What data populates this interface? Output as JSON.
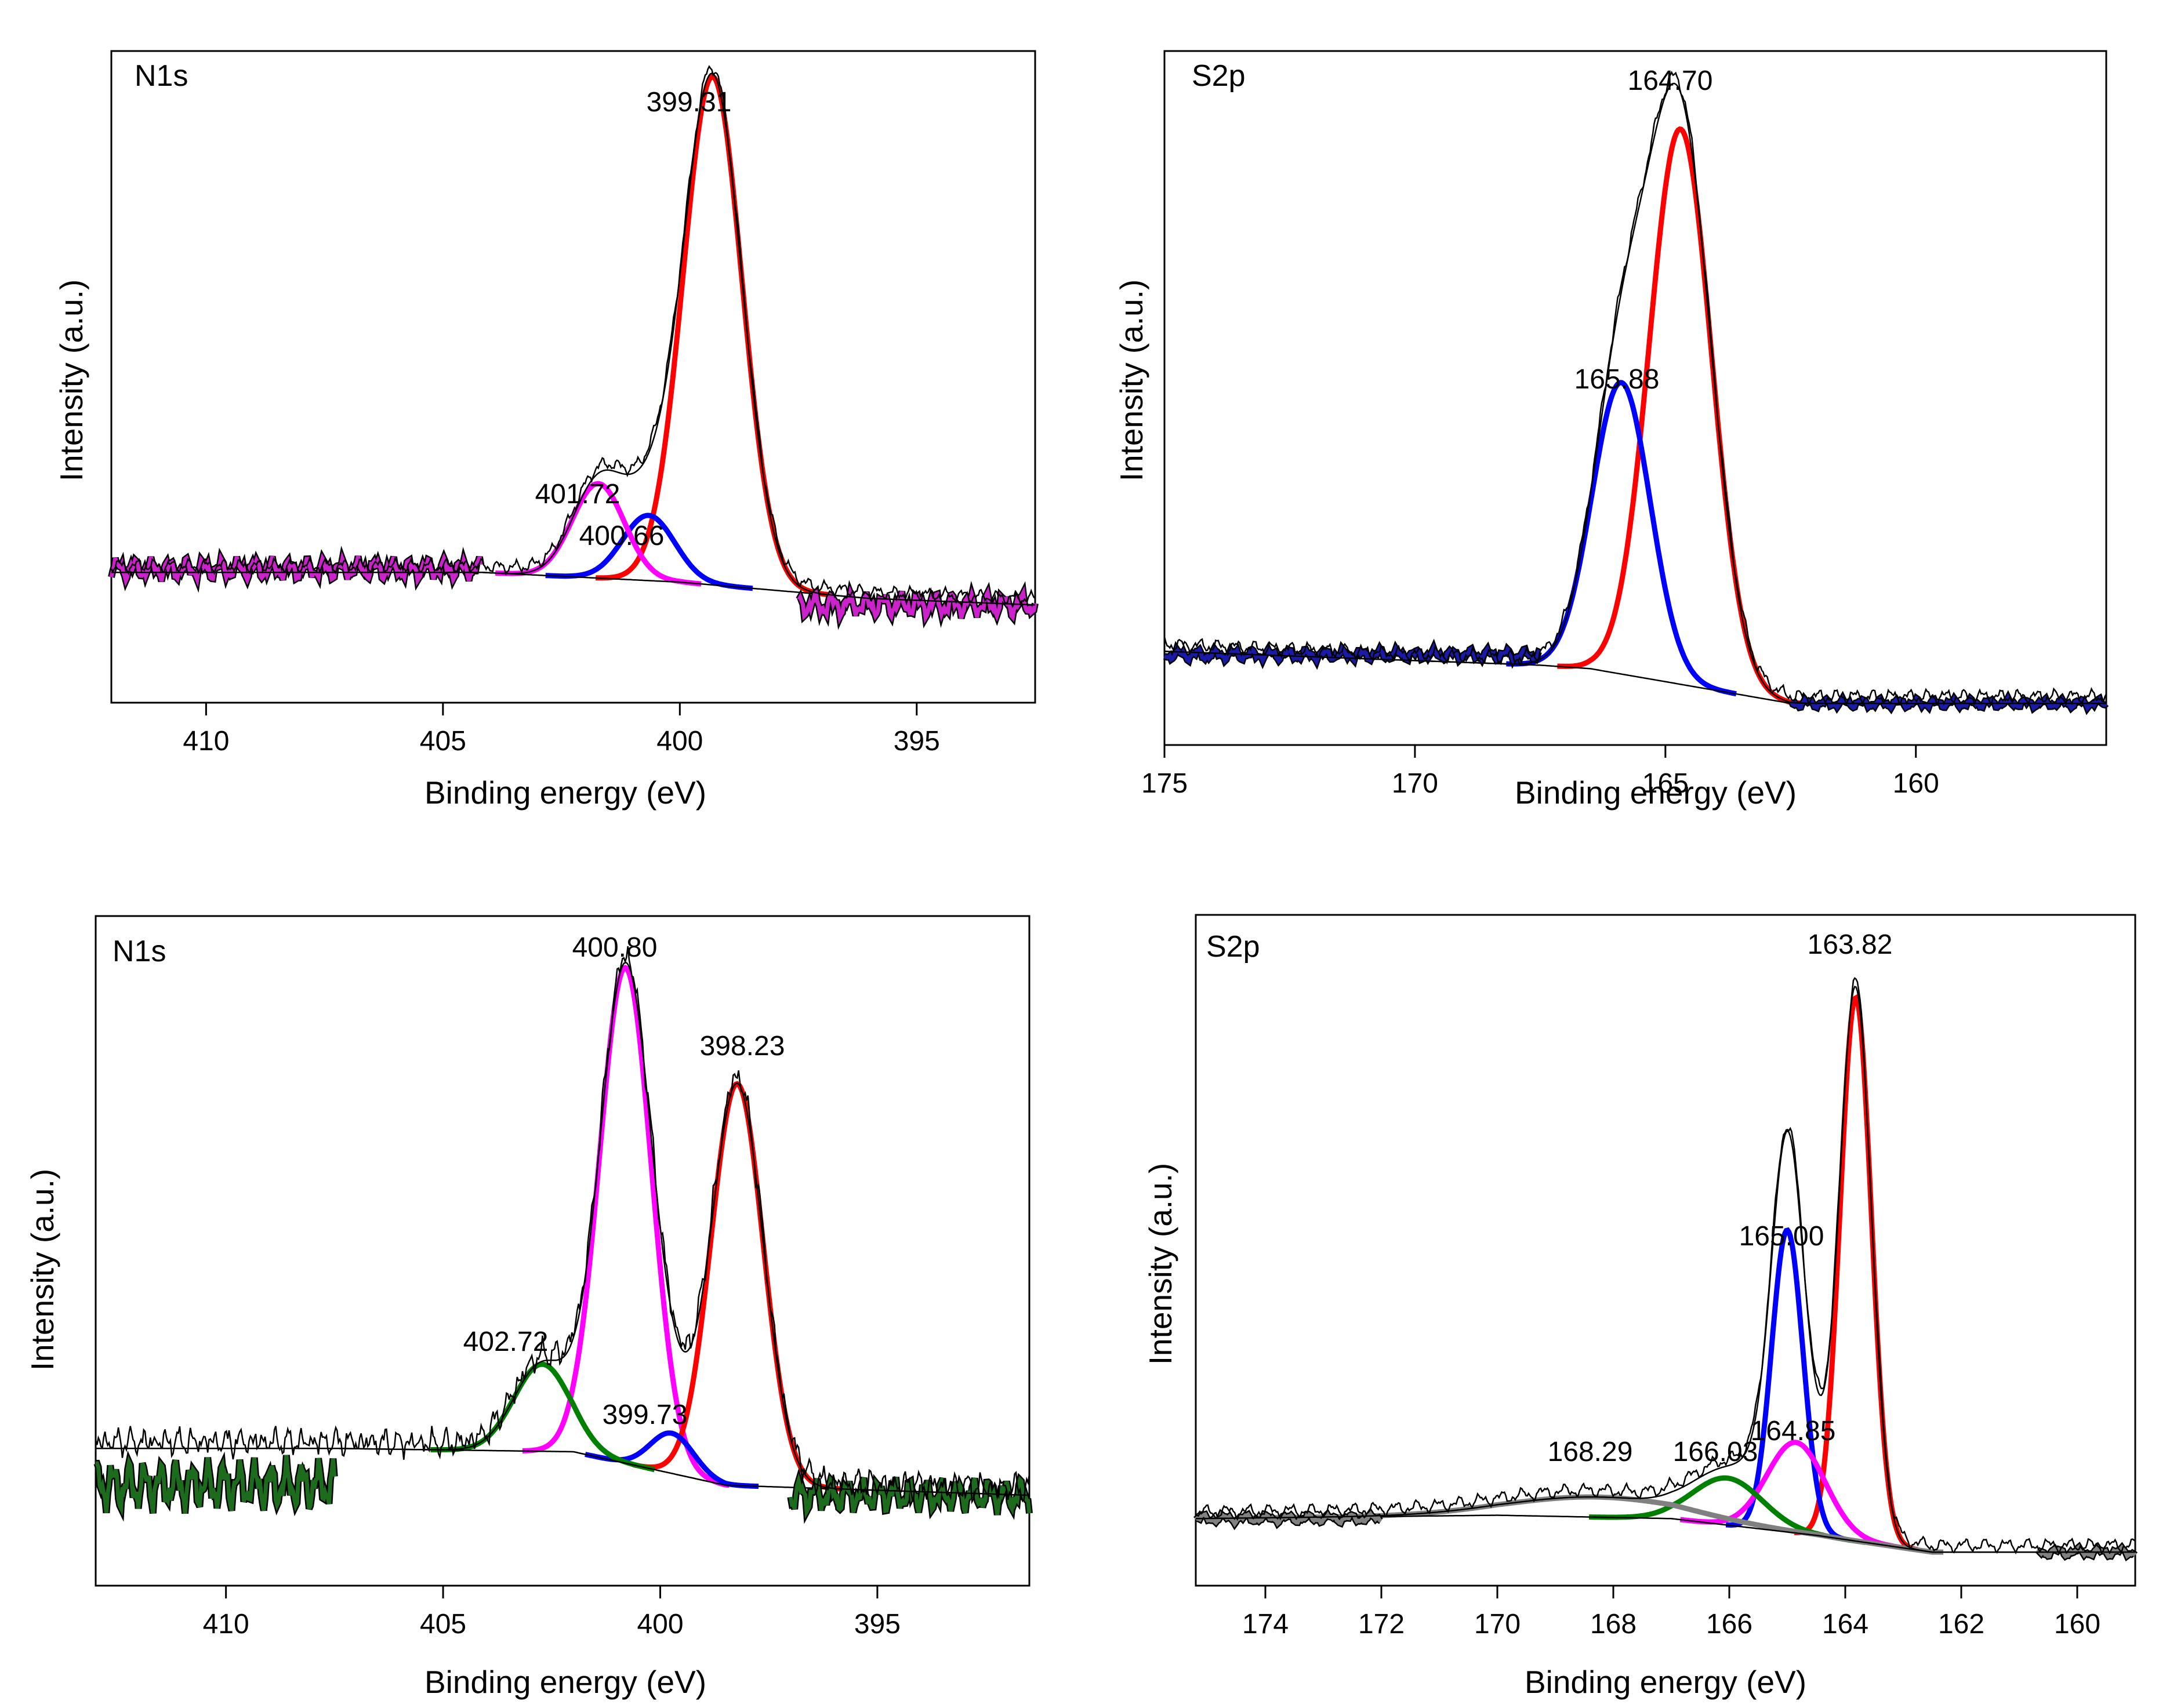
{
  "chart_data": [
    {
      "type": "line",
      "panel": "top-left",
      "title": "N1s",
      "xlabel": "Binding energy (eV)",
      "ylabel": "Intensity (a.u.)",
      "xlim": [
        412,
        392.5
      ],
      "x_ticks": [
        410,
        405,
        400,
        395
      ],
      "baseline": [
        [
          404.2,
          0.2
        ],
        [
          400,
          0.185
        ],
        [
          396,
          0.16
        ],
        [
          392.5,
          0.15
        ]
      ],
      "noise": {
        "left_level": 0.205,
        "left_amp": 0.02,
        "right_level": 0.15,
        "right_amp": 0.022,
        "extent": [
          412,
          404.2,
          397.5,
          392.5
        ]
      },
      "peaks": [
        {
          "label": "399.31",
          "center": 399.31,
          "height": 0.78,
          "width": 0.62,
          "color": "#ff0000"
        },
        {
          "label": "400.66",
          "center": 400.66,
          "height": 0.1,
          "width": 0.55,
          "color": "#0000ff"
        },
        {
          "label": "401.72",
          "center": 401.72,
          "height": 0.145,
          "width": 0.55,
          "color": "#ff00ff"
        }
      ],
      "labels_shown": [
        "399.31",
        "400.66",
        "401.72"
      ]
    },
    {
      "type": "line",
      "panel": "top-right",
      "title": "S2p",
      "xlabel": "Binding energy (eV)",
      "ylabel": "Intensity (a.u.)",
      "xlim": [
        175,
        156.2
      ],
      "x_ticks": [
        175,
        170,
        165,
        160
      ],
      "baseline": [
        [
          175,
          0.135
        ],
        [
          167.5,
          0.115
        ],
        [
          166.5,
          0.11
        ],
        [
          162.5,
          0.06
        ],
        [
          156.2,
          0.06
        ]
      ],
      "noise": {
        "left_level": 0.13,
        "left_amp": 0.01,
        "right_level": 0.06,
        "right_amp": 0.008,
        "extent": [
          175,
          167.5,
          162.5,
          156.2
        ]
      },
      "peaks": [
        {
          "label": "164.70",
          "center": 164.7,
          "height": 0.8,
          "width": 0.62,
          "color": "#ff0000"
        },
        {
          "label": "165.88",
          "center": 165.88,
          "height": 0.42,
          "width": 0.58,
          "color": "#0000ff"
        }
      ],
      "labels_shown": [
        "164.70",
        "165.88"
      ]
    },
    {
      "type": "line",
      "panel": "bottom-left",
      "title": "N1s",
      "xlabel": "Binding energy (eV)",
      "ylabel": "Intensity (a.u.)",
      "xlim": [
        413,
        391.5
      ],
      "x_ticks": [
        410,
        405,
        400,
        395
      ],
      "baseline": [
        [
          407.5,
          0.205
        ],
        [
          402,
          0.2
        ],
        [
          398.5,
          0.15
        ],
        [
          391.5,
          0.135
        ]
      ],
      "noise": {
        "left_level": 0.15,
        "left_amp": 0.045,
        "right_level": 0.135,
        "right_amp": 0.03,
        "extent": [
          413,
          407.5,
          397,
          391.5
        ]
      },
      "peaks": [
        {
          "label": "400.80",
          "center": 400.8,
          "height": 0.74,
          "width": 0.6,
          "color": "#ff00ff"
        },
        {
          "label": "398.23",
          "center": 398.23,
          "height": 0.6,
          "width": 0.6,
          "color": "#ff0000"
        },
        {
          "label": "399.73",
          "center": 399.73,
          "height": 0.06,
          "width": 0.5,
          "color": "#0000ff"
        },
        {
          "label": "402.72",
          "center": 402.72,
          "height": 0.13,
          "width": 0.65,
          "color": "#008000"
        }
      ],
      "labels_shown": [
        "400.80",
        "398.23",
        "399.73",
        "402.72"
      ]
    },
    {
      "type": "line",
      "panel": "bottom-right",
      "title": "S2p",
      "xlabel": "Binding energy (eV)",
      "ylabel": "Intensity (a.u.)",
      "xlim": [
        175.2,
        159
      ],
      "x_ticks": [
        174,
        172,
        170,
        168,
        166,
        164,
        162,
        160
      ],
      "baseline": [
        [
          175.2,
          0.1
        ],
        [
          170,
          0.105
        ],
        [
          167,
          0.1
        ],
        [
          164.5,
          0.075
        ],
        [
          162.5,
          0.05
        ],
        [
          159,
          0.05
        ]
      ],
      "noise": {
        "left_level": 0.1,
        "left_amp": 0.008,
        "right_level": 0.05,
        "right_amp": 0.008,
        "extent": [
          175.2,
          172,
          160.7,
          159
        ]
      },
      "peaks": [
        {
          "label": "163.82",
          "center": 163.82,
          "height": 0.81,
          "width": 0.27,
          "color": "#ff0000"
        },
        {
          "label": "165.00",
          "center": 165.0,
          "height": 0.45,
          "width": 0.27,
          "color": "#0000ff"
        },
        {
          "label": "164.85",
          "center": 164.85,
          "height": 0.135,
          "width": 0.5,
          "color": "#ff00ff"
        },
        {
          "label": "166.03",
          "center": 166.03,
          "height": 0.07,
          "width": 0.6,
          "color": "#008000"
        },
        {
          "label": "168.29",
          "center": 168.29,
          "height": 0.03,
          "width": 1.5,
          "color": "#808080"
        }
      ],
      "labels_shown": [
        "163.82",
        "165.00",
        "164.85",
        "166.03",
        "168.29"
      ]
    }
  ]
}
